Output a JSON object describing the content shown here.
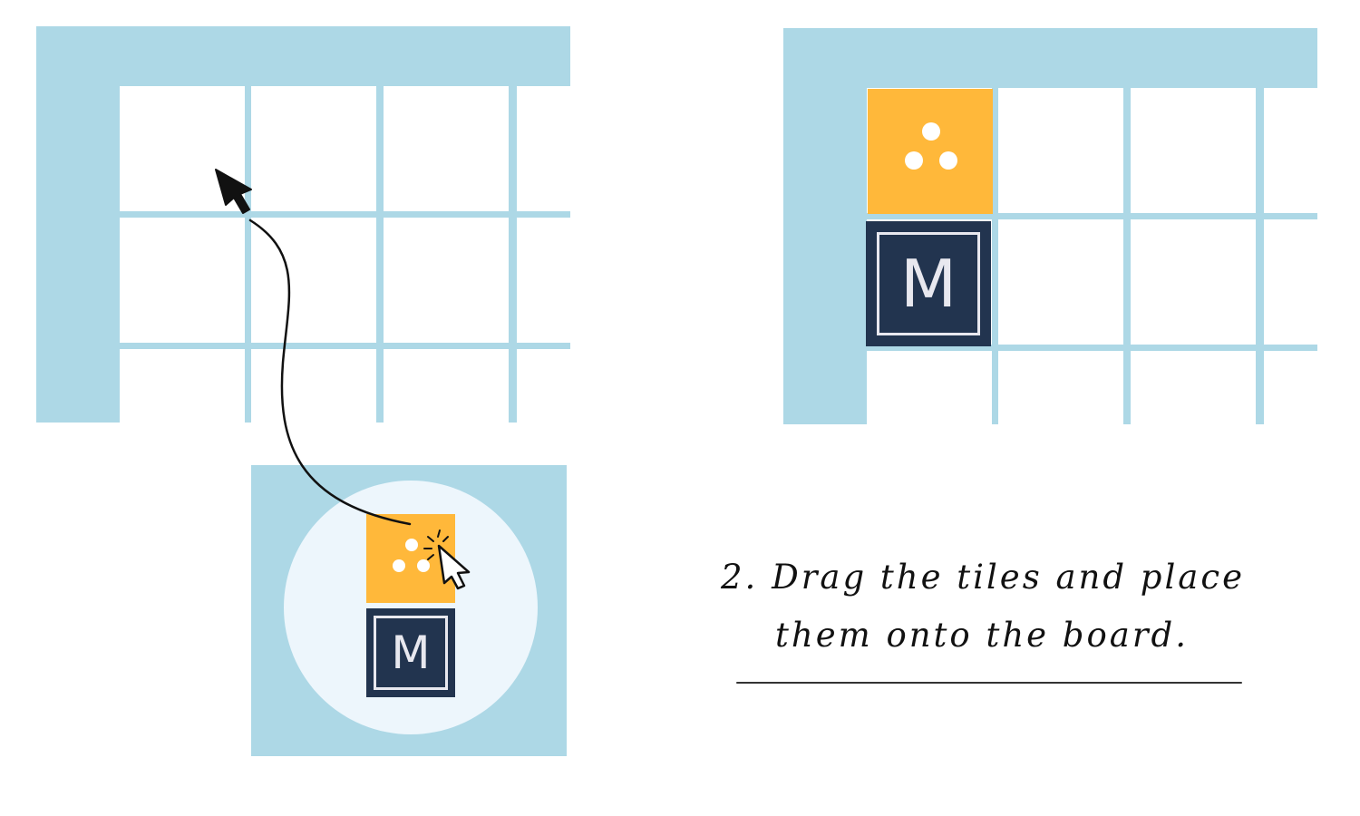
{
  "caption": {
    "line1": "2. Drag the tiles and place",
    "line2": "them onto the board."
  },
  "tiles": {
    "navy_letter": "M"
  },
  "colors": {
    "board": "#add8e6",
    "tray_circle": "#edf6fc",
    "tile_yellow": "#ffb83a",
    "tile_navy": "#22344f",
    "tile_border": "#e8e8ef"
  },
  "icons": {
    "pointer": "arrow-cursor-icon",
    "click": "click-cursor-icon",
    "dots": "three-dots-icon"
  }
}
